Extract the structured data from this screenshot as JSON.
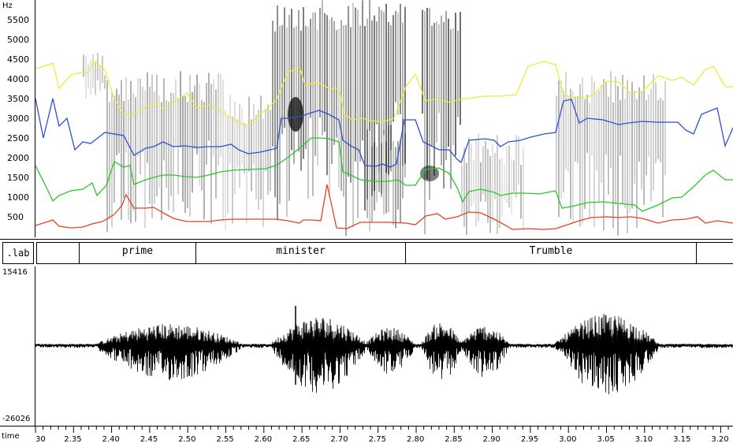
{
  "spectrogram": {
    "unit": "Hz",
    "y_ticks": [
      "5500",
      "5000",
      "4500",
      "4000",
      "3500",
      "3000",
      "2500",
      "2000",
      "1500",
      "1000",
      "500"
    ],
    "formant_colors": {
      "F1": "#e8402a",
      "F2": "#29c829",
      "F3": "#2f4ed8",
      "F4": "#ecec3a"
    }
  },
  "labels": {
    "tier_name": ".lab",
    "segments": [
      {
        "text": ""
      },
      {
        "text": "prime"
      },
      {
        "text": "minister"
      },
      {
        "text": "Trumble"
      },
      {
        "text": ""
      }
    ]
  },
  "waveform": {
    "max_label": "15416",
    "min_label": "-26026"
  },
  "time_axis": {
    "name": "time",
    "tick_labels": [
      "30",
      "2.35",
      "2.40",
      "2.45",
      "2.50",
      "2.55",
      "2.60",
      "2.65",
      "2.70",
      "2.75",
      "2.80",
      "2.85",
      "2.90",
      "2.95",
      "3.00",
      "3.05",
      "3.10",
      "3.15",
      "3.20"
    ]
  }
}
